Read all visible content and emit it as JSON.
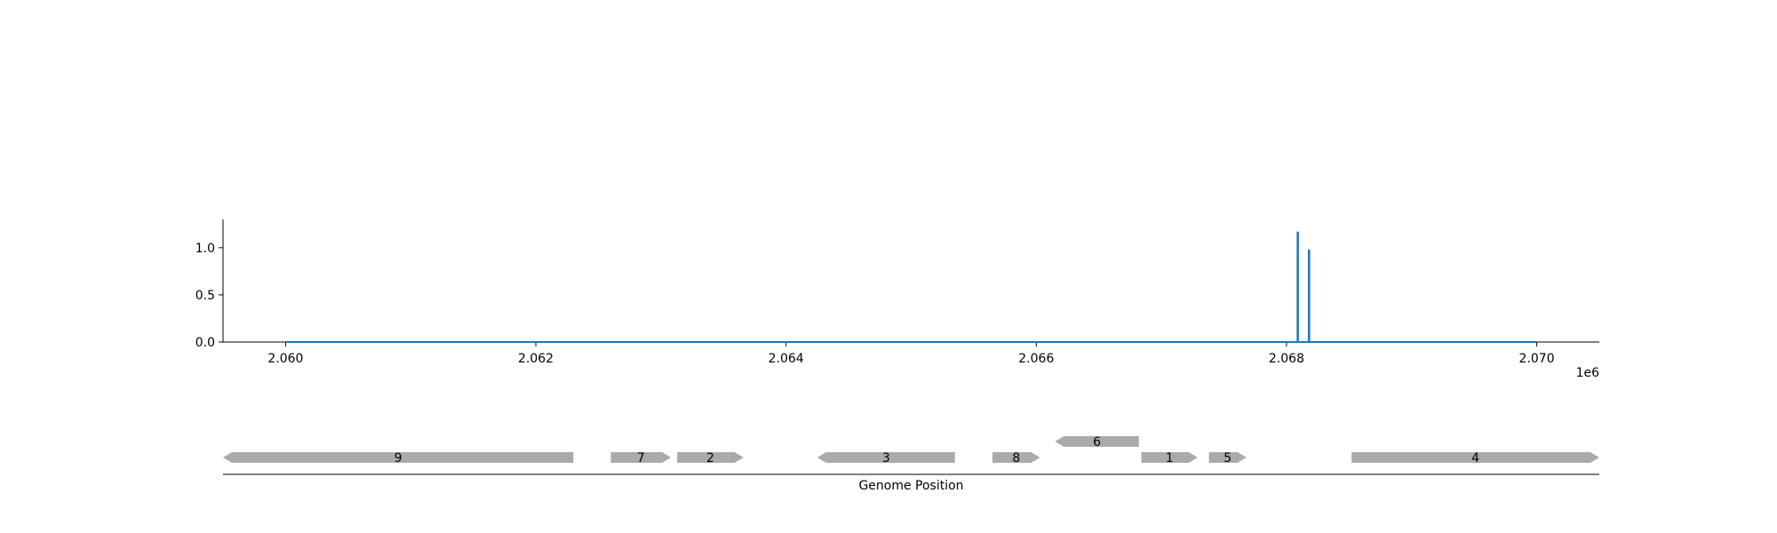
{
  "chart_data": [
    {
      "type": "line",
      "x_range": [
        2059500,
        2070500
      ],
      "ylim": [
        0,
        1.3
      ],
      "x_ticks": [
        2060000,
        2062000,
        2064000,
        2066000,
        2068000,
        2070000
      ],
      "x_tick_labels": [
        "2.060",
        "2.062",
        "2.064",
        "2.066",
        "2.068",
        "2.070"
      ],
      "x_offset_label": "1e6",
      "y_ticks": [
        0.0,
        0.5,
        1.0
      ],
      "y_tick_labels": [
        "0.0",
        "0.5",
        "1.0"
      ],
      "baseline": {
        "x_start": 2060000,
        "x_end": 2070000,
        "y": 0
      },
      "series": [
        {
          "color": "#1f77b4",
          "points": [
            {
              "x": 2068090,
              "y": 1.17
            },
            {
              "x": 2068180,
              "y": 0.98
            }
          ]
        }
      ],
      "grid": false,
      "xlabel": "",
      "ylabel": ""
    },
    {
      "type": "gene_map",
      "xlabel": "Genome Position",
      "x_range": [
        2059500,
        2070500
      ],
      "feature_color": "#aaaaaa",
      "genes": [
        {
          "label": "9",
          "start": 2059500,
          "end": 2062300,
          "strand": "-",
          "track": 0
        },
        {
          "label": "7",
          "start": 2062600,
          "end": 2063080,
          "strand": "+",
          "track": 0
        },
        {
          "label": "2",
          "start": 2063130,
          "end": 2063660,
          "strand": "+",
          "track": 0
        },
        {
          "label": "3",
          "start": 2064250,
          "end": 2065350,
          "strand": "-",
          "track": 0
        },
        {
          "label": "8",
          "start": 2065650,
          "end": 2066030,
          "strand": "+",
          "track": 0
        },
        {
          "label": "6",
          "start": 2066150,
          "end": 2066820,
          "strand": "-",
          "track": 1
        },
        {
          "label": "1",
          "start": 2066840,
          "end": 2067290,
          "strand": "+",
          "track": 0
        },
        {
          "label": "5",
          "start": 2067380,
          "end": 2067680,
          "strand": "+",
          "track": 0
        },
        {
          "label": "4",
          "start": 2068520,
          "end": 2070500,
          "strand": "+",
          "track": 0
        }
      ]
    }
  ]
}
